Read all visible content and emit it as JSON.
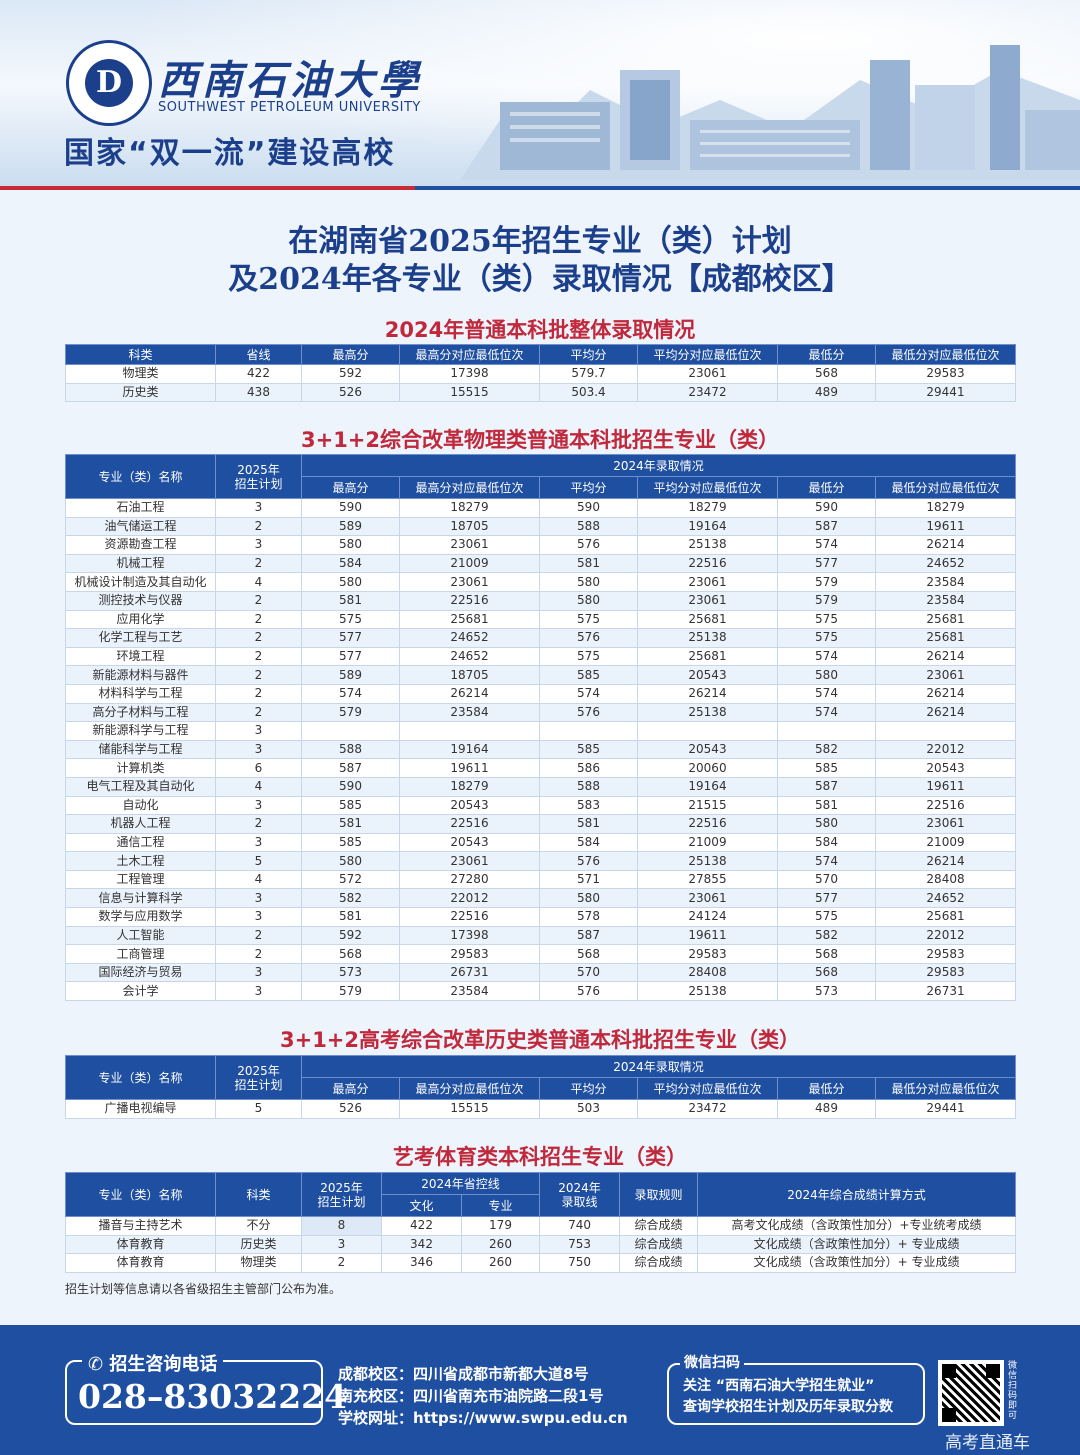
{
  "header": {
    "logo_mark": "D",
    "university_cn": "西南石油大學",
    "university_en": "SOUTHWEST PETROLEUM UNIVERSITY",
    "slogan": "国家“双一流”建设高校"
  },
  "title_line1": "在湖南省2025年招生专业（类）计划",
  "title_line2": "及2024年各专业（类）录取情况【成都校区】",
  "section1": {
    "title": "2024年普通本科批整体录取情况",
    "headers": [
      "科类",
      "省线",
      "最高分",
      "最高分对应最低位次",
      "平均分",
      "平均分对应最低位次",
      "最低分",
      "最低分对应最低位次"
    ],
    "rows": [
      [
        "物理类",
        "422",
        "592",
        "17398",
        "579.7",
        "23061",
        "568",
        "29583"
      ],
      [
        "历史类",
        "438",
        "526",
        "15515",
        "503.4",
        "23472",
        "489",
        "29441"
      ]
    ]
  },
  "section2": {
    "title": "3+1+2综合改革物理类普通本科批招生专业（类）",
    "h_name": "专业（类）名称",
    "h_plan": "2025年\n招生计划",
    "h_group": "2024年录取情况",
    "sub_headers": [
      "最高分",
      "最高分对应最低位次",
      "平均分",
      "平均分对应最低位次",
      "最低分",
      "最低分对应最低位次"
    ],
    "rows": [
      [
        "石油工程",
        "3",
        "590",
        "18279",
        "590",
        "18279",
        "590",
        "18279"
      ],
      [
        "油气储运工程",
        "2",
        "589",
        "18705",
        "588",
        "19164",
        "587",
        "19611"
      ],
      [
        "资源勘查工程",
        "3",
        "580",
        "23061",
        "576",
        "25138",
        "574",
        "26214"
      ],
      [
        "机械工程",
        "2",
        "584",
        "21009",
        "581",
        "22516",
        "577",
        "24652"
      ],
      [
        "机械设计制造及其自动化",
        "4",
        "580",
        "23061",
        "580",
        "23061",
        "579",
        "23584"
      ],
      [
        "测控技术与仪器",
        "2",
        "581",
        "22516",
        "580",
        "23061",
        "579",
        "23584"
      ],
      [
        "应用化学",
        "2",
        "575",
        "25681",
        "575",
        "25681",
        "575",
        "25681"
      ],
      [
        "化学工程与工艺",
        "2",
        "577",
        "24652",
        "576",
        "25138",
        "575",
        "25681"
      ],
      [
        "环境工程",
        "2",
        "577",
        "24652",
        "575",
        "25681",
        "574",
        "26214"
      ],
      [
        "新能源材料与器件",
        "2",
        "589",
        "18705",
        "585",
        "20543",
        "580",
        "23061"
      ],
      [
        "材料科学与工程",
        "2",
        "574",
        "26214",
        "574",
        "26214",
        "574",
        "26214"
      ],
      [
        "高分子材料与工程",
        "2",
        "579",
        "23584",
        "576",
        "25138",
        "574",
        "26214"
      ],
      [
        "新能源科学与工程",
        "3",
        "",
        "",
        "",
        "",
        "",
        ""
      ],
      [
        "储能科学与工程",
        "3",
        "588",
        "19164",
        "585",
        "20543",
        "582",
        "22012"
      ],
      [
        "计算机类",
        "6",
        "587",
        "19611",
        "586",
        "20060",
        "585",
        "20543"
      ],
      [
        "电气工程及其自动化",
        "4",
        "590",
        "18279",
        "588",
        "19164",
        "587",
        "19611"
      ],
      [
        "自动化",
        "3",
        "585",
        "20543",
        "583",
        "21515",
        "581",
        "22516"
      ],
      [
        "机器人工程",
        "2",
        "581",
        "22516",
        "581",
        "22516",
        "580",
        "23061"
      ],
      [
        "通信工程",
        "3",
        "585",
        "20543",
        "584",
        "21009",
        "584",
        "21009"
      ],
      [
        "土木工程",
        "5",
        "580",
        "23061",
        "576",
        "25138",
        "574",
        "26214"
      ],
      [
        "工程管理",
        "4",
        "572",
        "27280",
        "571",
        "27855",
        "570",
        "28408"
      ],
      [
        "信息与计算科学",
        "3",
        "582",
        "22012",
        "580",
        "23061",
        "577",
        "24652"
      ],
      [
        "数学与应用数学",
        "3",
        "581",
        "22516",
        "578",
        "24124",
        "575",
        "25681"
      ],
      [
        "人工智能",
        "2",
        "592",
        "17398",
        "587",
        "19611",
        "582",
        "22012"
      ],
      [
        "工商管理",
        "2",
        "568",
        "29583",
        "568",
        "29583",
        "568",
        "29583"
      ],
      [
        "国际经济与贸易",
        "3",
        "573",
        "26731",
        "570",
        "28408",
        "568",
        "29583"
      ],
      [
        "会计学",
        "3",
        "579",
        "23584",
        "576",
        "25138",
        "573",
        "26731"
      ]
    ]
  },
  "section3": {
    "title": "3+1+2高考综合改革历史类普通本科批招生专业（类）",
    "h_name": "专业（类）名称",
    "h_plan": "2025年\n招生计划",
    "h_group": "2024年录取情况",
    "sub_headers": [
      "最高分",
      "最高分对应最低位次",
      "平均分",
      "平均分对应最低位次",
      "最低分",
      "最低分对应最低位次"
    ],
    "rows": [
      [
        "广播电视编导",
        "5",
        "526",
        "15515",
        "503",
        "23472",
        "489",
        "29441"
      ]
    ]
  },
  "section4": {
    "title": "艺考体育类本科招生专业（类）",
    "h_name": "专业（类）名称",
    "h_type": "科类",
    "h_plan": "2025年\n招生计划",
    "h_group": "2024年省控线",
    "h_culture": "文化",
    "h_major": "专业",
    "h_line": "2024年\n录取线",
    "h_rule": "录取规则",
    "h_calc": "2024年综合成绩计算方式",
    "rows": [
      [
        "播音与主持艺术",
        "不分",
        "8",
        "422",
        "179",
        "740",
        "综合成绩",
        "高考文化成绩（含政策性加分）+专业统考成绩"
      ],
      [
        "体育教育",
        "历史类",
        "3",
        "342",
        "260",
        "753",
        "综合成绩",
        "文化成绩（含政策性加分）+ 专业成绩"
      ],
      [
        "体育教育",
        "物理类",
        "2",
        "346",
        "260",
        "750",
        "综合成绩",
        "文化成绩（含政策性加分）+ 专业成绩"
      ]
    ]
  },
  "note": "招生计划等信息请以各省级招生主管部门公布为准。",
  "footer": {
    "phone_label": "招生咨询电话",
    "phone_icon": "phone-icon",
    "phone": "028–83032224",
    "addr1": "成都校区：四川省成都市新都大道8号",
    "addr2": "南充校区：四川省南充市油院路二段1号",
    "addr3": "学校网址：https://www.swpu.edu.cn",
    "wx_label": "微信扫码",
    "wx_line1": "关注 “西南石油大学招生就业”",
    "wx_line2": "查询学校招生计划及历年录取分数",
    "qr_side": "微信扫码即可",
    "watermark": "高考直通车"
  },
  "colors": {
    "primary": "#1f4fa0",
    "accent_red": "#c0283c",
    "row_alt": "#eaf2fb"
  }
}
